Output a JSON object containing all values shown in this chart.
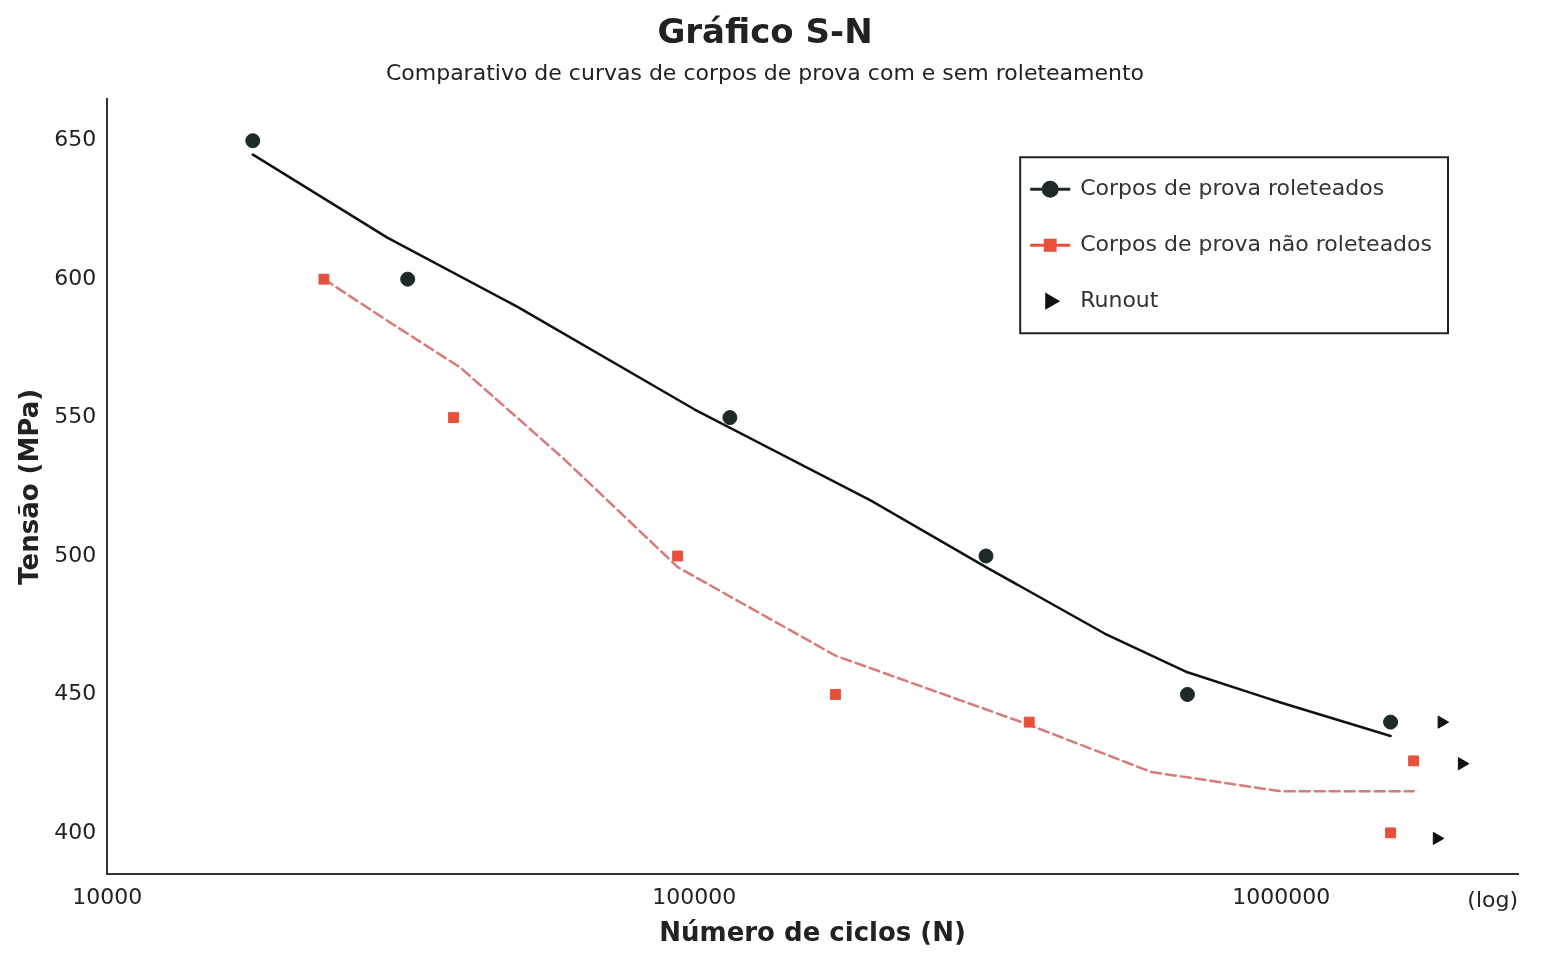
{
  "chart_data": {
    "type": "scatter",
    "title": "Gráfico S-N",
    "subtitle": "Comparativo de curvas de corpos de prova com e sem roleteamento",
    "xlabel": "Número de ciclos (N)",
    "ylabel": "Tensão (MPa)",
    "annotations": [
      "(log)"
    ],
    "log": "x",
    "xlim": [
      10000,
      2530000
    ],
    "xticks": [
      10000,
      100000,
      1000000
    ],
    "ylim": [
      385,
      665
    ],
    "yticks": [
      400,
      450,
      500,
      550,
      600,
      650
    ],
    "grid": false,
    "legend": "top right",
    "series": [
      {
        "name": "Corpos de prova roleteados",
        "color": "#1e2a2a",
        "marker": "circle",
        "x": [
          17700,
          32500,
          115000,
          314000,
          692000,
          1535000
        ],
        "values": [
          650,
          600,
          550,
          500,
          450,
          440
        ]
      },
      {
        "name": "Corpos de prova não roleteados",
        "color": "#e8503a",
        "marker": "square",
        "x": [
          23400,
          38900,
          93700,
          174000,
          372000,
          1680000,
          1535000
        ],
        "values": [
          600,
          550,
          500,
          450,
          440,
          426,
          400
        ]
      },
      {
        "name": "Runout",
        "color": "#111111",
        "marker": "triangle",
        "x": [
          1875000,
          2030000,
          1840000
        ],
        "values": [
          440,
          425,
          398
        ]
      },
      {
        "type": "line",
        "color": "#111111",
        "marker": "none",
        "line_style": "solid",
        "x": [
          17700,
          30000,
          50000,
          100000,
          200000,
          314000,
          500000,
          692000,
          1000000,
          1535000
        ],
        "values": [
          645,
          615,
          590,
          553,
          520,
          496,
          472,
          458,
          447,
          435
        ]
      },
      {
        "type": "line",
        "color": "#d97a7a",
        "marker": "none",
        "line_style": "dashed",
        "x": [
          23400,
          30000,
          40000,
          60000,
          93700,
          174000,
          372000,
          600000,
          1000000,
          1680000
        ],
        "values": [
          600,
          585,
          568,
          535,
          496,
          464,
          439,
          422,
          415,
          415
        ]
      }
    ]
  }
}
